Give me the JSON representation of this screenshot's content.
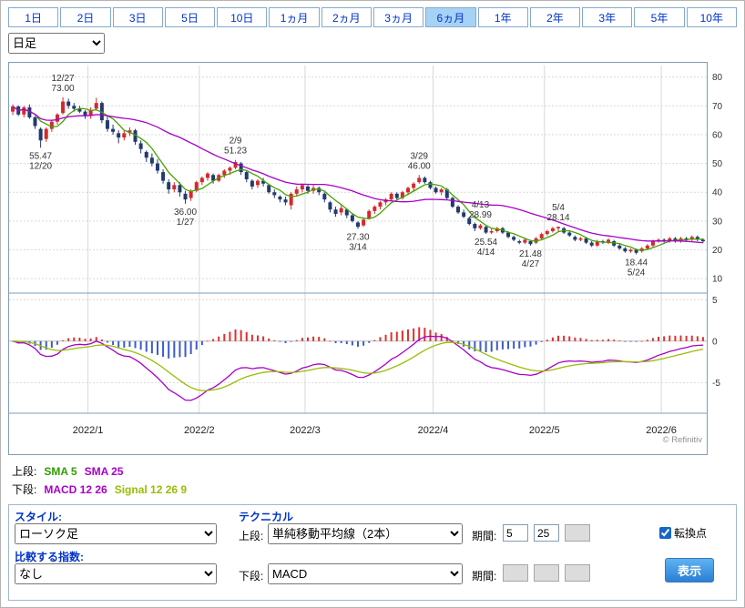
{
  "tabs": {
    "items": [
      {
        "label": "1日",
        "selected": false
      },
      {
        "label": "2日",
        "selected": false
      },
      {
        "label": "3日",
        "selected": false
      },
      {
        "label": "5日",
        "selected": false
      },
      {
        "label": "10日",
        "selected": false
      },
      {
        "label": "1ヵ月",
        "selected": false
      },
      {
        "label": "2ヵ月",
        "selected": false
      },
      {
        "label": "3ヵ月",
        "selected": false
      },
      {
        "label": "6ヵ月",
        "selected": true
      },
      {
        "label": "1年",
        "selected": false
      },
      {
        "label": "2年",
        "selected": false
      },
      {
        "label": "3年",
        "selected": false
      },
      {
        "label": "5年",
        "selected": false
      },
      {
        "label": "10年",
        "selected": false
      }
    ]
  },
  "timeframe_select": {
    "value": "日足"
  },
  "chart_data": {
    "type": "candlestick",
    "copyright": "© Refinitiv",
    "y_axis_main": {
      "ticks": [
        80,
        70,
        60,
        50,
        40,
        30,
        20,
        10
      ]
    },
    "y_axis_sub": {
      "ticks": [
        5,
        0,
        -5
      ]
    },
    "x_labels": [
      {
        "label": "2022/1",
        "index": 14
      },
      {
        "label": "2022/2",
        "index": 34
      },
      {
        "label": "2022/3",
        "index": 53
      },
      {
        "label": "2022/4",
        "index": 76
      },
      {
        "label": "2022/5",
        "index": 96
      },
      {
        "label": "2022/6",
        "index": 117
      }
    ],
    "colors": {
      "up": "#d42a2a",
      "down": "#223a70"
    },
    "overlays": [
      {
        "name": "SMA 5",
        "period": 5,
        "color": "#44a300"
      },
      {
        "name": "SMA 25",
        "period": 25,
        "color": "#a800c8"
      }
    ],
    "sub_indicator": {
      "name": "MACD",
      "fast": 12,
      "slow": 26,
      "signal": 9,
      "macd_color": "#a800c8",
      "signal_color": "#97be00",
      "hist_up_color": "#e03030",
      "hist_down_color": "#3c5cc8"
    },
    "annotations": [
      {
        "index": 5,
        "placement": "below",
        "lines": [
          "55.47",
          "12/20"
        ]
      },
      {
        "index": 9,
        "placement": "above",
        "lines": [
          "12/27",
          "73.00"
        ]
      },
      {
        "index": 31,
        "placement": "below",
        "lines": [
          "36.00",
          "1/27"
        ]
      },
      {
        "index": 40,
        "placement": "above",
        "lines": [
          "2/9",
          "51.23"
        ]
      },
      {
        "index": 62,
        "placement": "below",
        "lines": [
          "27.30",
          "3/14"
        ]
      },
      {
        "index": 73,
        "placement": "above",
        "lines": [
          "3/29",
          "46.00"
        ]
      },
      {
        "index": 84,
        "placement": "above",
        "lines": [
          "4/13",
          "28.99"
        ]
      },
      {
        "index": 85,
        "placement": "below",
        "lines": [
          "25.54",
          "4/14"
        ]
      },
      {
        "index": 93,
        "placement": "below",
        "lines": [
          "21.48",
          "4/27"
        ]
      },
      {
        "index": 98,
        "placement": "above",
        "lines": [
          "5/4",
          "28.14"
        ]
      },
      {
        "index": 112,
        "placement": "below",
        "lines": [
          "18.44",
          "5/24"
        ]
      }
    ],
    "dates": [
      "12/13",
      "12/14",
      "12/15",
      "12/16",
      "12/17",
      "12/20",
      "12/21",
      "12/22",
      "12/23",
      "12/27",
      "12/28",
      "12/29",
      "12/30",
      "12/31",
      "1/3",
      "1/4",
      "1/5",
      "1/6",
      "1/7",
      "1/10",
      "1/11",
      "1/12",
      "1/13",
      "1/14",
      "1/18",
      "1/19",
      "1/20",
      "1/21",
      "1/24",
      "1/25",
      "1/26",
      "1/27",
      "1/28",
      "1/31",
      "2/1",
      "2/2",
      "2/3",
      "2/4",
      "2/7",
      "2/8",
      "2/9",
      "2/10",
      "2/11",
      "2/14",
      "2/15",
      "2/16",
      "2/17",
      "2/18",
      "2/22",
      "2/23",
      "2/24",
      "2/25",
      "2/28",
      "3/1",
      "3/2",
      "3/3",
      "3/4",
      "3/7",
      "3/8",
      "3/9",
      "3/10",
      "3/11",
      "3/14",
      "3/15",
      "3/16",
      "3/17",
      "3/18",
      "3/21",
      "3/22",
      "3/23",
      "3/24",
      "3/25",
      "3/28",
      "3/29",
      "3/30",
      "3/31",
      "4/1",
      "4/4",
      "4/5",
      "4/6",
      "4/7",
      "4/8",
      "4/11",
      "4/12",
      "4/13",
      "4/14",
      "4/18",
      "4/19",
      "4/20",
      "4/21",
      "4/22",
      "4/25",
      "4/26",
      "4/27",
      "4/28",
      "4/29",
      "5/2",
      "5/3",
      "5/4",
      "5/5",
      "5/6",
      "5/9",
      "5/10",
      "5/11",
      "5/12",
      "5/13",
      "5/16",
      "5/17",
      "5/18",
      "5/19",
      "5/20",
      "5/23",
      "5/24",
      "5/25",
      "5/26",
      "5/27",
      "5/31",
      "6/1",
      "6/2",
      "6/3",
      "6/6",
      "6/7",
      "6/8",
      "6/9",
      "6/10"
    ],
    "ohlc": [
      [
        68.0,
        70.5,
        66.8,
        69.8
      ],
      [
        69.8,
        70.2,
        66.5,
        67.0
      ],
      [
        67.0,
        70.0,
        66.0,
        69.5
      ],
      [
        69.5,
        70.5,
        65.5,
        66.0
      ],
      [
        66.0,
        66.5,
        62.0,
        63.0
      ],
      [
        62.0,
        62.5,
        55.47,
        58.0
      ],
      [
        58.5,
        62.5,
        57.5,
        62.0
      ],
      [
        62.0,
        65.0,
        61.0,
        64.5
      ],
      [
        64.5,
        67.5,
        63.5,
        67.0
      ],
      [
        67.5,
        73.0,
        67.0,
        71.5
      ],
      [
        71.5,
        72.5,
        69.0,
        70.0
      ],
      [
        70.0,
        71.0,
        68.0,
        69.0
      ],
      [
        69.0,
        70.0,
        67.5,
        68.0
      ],
      [
        68.0,
        68.5,
        65.5,
        66.5
      ],
      [
        66.5,
        69.5,
        65.5,
        68.5
      ],
      [
        69.0,
        72.8,
        68.5,
        71.0
      ],
      [
        71.0,
        71.5,
        64.0,
        65.0
      ],
      [
        65.0,
        66.5,
        61.0,
        62.0
      ],
      [
        62.0,
        63.5,
        60.0,
        61.0
      ],
      [
        60.5,
        61.5,
        57.0,
        59.0
      ],
      [
        59.0,
        61.5,
        58.0,
        60.5
      ],
      [
        60.5,
        62.5,
        59.5,
        61.5
      ],
      [
        61.5,
        62.0,
        56.5,
        57.5
      ],
      [
        57.0,
        58.0,
        53.5,
        55.0
      ],
      [
        54.0,
        54.5,
        50.5,
        52.0
      ],
      [
        52.0,
        53.5,
        49.0,
        50.0
      ],
      [
        50.0,
        51.5,
        46.5,
        47.5
      ],
      [
        47.0,
        48.0,
        43.0,
        44.0
      ],
      [
        43.5,
        44.5,
        39.5,
        41.0
      ],
      [
        41.0,
        43.5,
        40.0,
        42.5
      ],
      [
        42.5,
        43.5,
        38.5,
        40.0
      ],
      [
        39.5,
        40.5,
        36.0,
        37.5
      ],
      [
        38.0,
        41.0,
        37.0,
        40.5
      ],
      [
        40.5,
        44.0,
        40.0,
        43.5
      ],
      [
        43.5,
        45.5,
        42.5,
        45.0
      ],
      [
        45.0,
        47.0,
        44.0,
        46.5
      ],
      [
        46.0,
        46.5,
        43.0,
        44.0
      ],
      [
        44.0,
        46.5,
        43.5,
        46.0
      ],
      [
        46.0,
        48.0,
        45.0,
        47.5
      ],
      [
        47.5,
        49.0,
        46.0,
        48.5
      ],
      [
        48.5,
        51.23,
        48.0,
        50.5
      ],
      [
        50.0,
        50.5,
        46.0,
        47.0
      ],
      [
        47.0,
        47.5,
        43.5,
        44.5
      ],
      [
        44.0,
        44.5,
        41.0,
        42.0
      ],
      [
        42.5,
        44.5,
        41.5,
        44.0
      ],
      [
        44.0,
        45.0,
        42.0,
        43.0
      ],
      [
        42.5,
        43.0,
        39.5,
        40.0
      ],
      [
        40.0,
        41.0,
        38.0,
        39.0
      ],
      [
        38.5,
        39.0,
        36.5,
        37.5
      ],
      [
        37.5,
        38.5,
        35.5,
        36.5
      ],
      [
        35.5,
        40.0,
        34.0,
        39.5
      ],
      [
        39.5,
        42.0,
        38.5,
        41.0
      ],
      [
        41.0,
        43.0,
        40.0,
        42.5
      ],
      [
        42.0,
        42.5,
        39.5,
        40.5
      ],
      [
        40.5,
        42.5,
        39.5,
        41.5
      ],
      [
        41.5,
        42.0,
        39.0,
        40.0
      ],
      [
        39.5,
        40.0,
        36.5,
        37.5
      ],
      [
        36.5,
        37.0,
        33.0,
        34.0
      ],
      [
        34.0,
        35.0,
        31.5,
        32.5
      ],
      [
        33.0,
        35.5,
        32.0,
        34.5
      ],
      [
        34.0,
        34.5,
        31.0,
        32.0
      ],
      [
        32.0,
        32.5,
        29.5,
        30.0
      ],
      [
        29.5,
        30.0,
        27.3,
        28.0
      ],
      [
        28.5,
        31.0,
        28.0,
        30.5
      ],
      [
        31.0,
        34.0,
        30.5,
        33.5
      ],
      [
        33.5,
        35.5,
        32.5,
        35.0
      ],
      [
        35.0,
        37.0,
        34.0,
        36.5
      ],
      [
        36.5,
        38.0,
        35.5,
        37.5
      ],
      [
        37.5,
        40.0,
        37.0,
        39.5
      ],
      [
        39.5,
        40.0,
        37.0,
        38.0
      ],
      [
        38.0,
        40.5,
        37.5,
        40.0
      ],
      [
        40.0,
        42.0,
        39.0,
        41.5
      ],
      [
        41.5,
        43.5,
        40.5,
        43.0
      ],
      [
        43.5,
        46.0,
        43.0,
        45.0
      ],
      [
        45.0,
        45.5,
        43.0,
        43.5
      ],
      [
        43.5,
        44.0,
        41.0,
        41.5
      ],
      [
        41.5,
        42.0,
        39.5,
        40.0
      ],
      [
        40.0,
        41.5,
        39.0,
        41.0
      ],
      [
        41.0,
        41.5,
        37.5,
        38.0
      ],
      [
        38.0,
        38.5,
        34.5,
        35.0
      ],
      [
        35.0,
        35.5,
        32.5,
        33.0
      ],
      [
        33.0,
        34.0,
        31.0,
        31.5
      ],
      [
        31.0,
        31.5,
        28.5,
        29.0
      ],
      [
        29.0,
        29.5,
        26.5,
        27.5
      ],
      [
        27.5,
        28.99,
        27.0,
        28.5
      ],
      [
        28.0,
        28.5,
        25.54,
        26.0
      ],
      [
        26.0,
        27.5,
        25.5,
        26.5
      ],
      [
        26.5,
        28.0,
        26.0,
        27.5
      ],
      [
        27.5,
        28.0,
        25.5,
        26.0
      ],
      [
        26.0,
        26.5,
        24.0,
        24.5
      ],
      [
        24.5,
        25.0,
        23.0,
        23.5
      ],
      [
        23.0,
        23.5,
        22.0,
        22.5
      ],
      [
        22.5,
        24.0,
        22.0,
        23.5
      ],
      [
        23.0,
        23.5,
        21.48,
        22.0
      ],
      [
        22.5,
        24.5,
        22.0,
        24.0
      ],
      [
        24.0,
        26.0,
        23.5,
        25.5
      ],
      [
        25.5,
        27.0,
        25.0,
        26.5
      ],
      [
        26.5,
        28.0,
        26.0,
        27.5
      ],
      [
        27.5,
        28.14,
        26.5,
        28.0
      ],
      [
        27.5,
        28.0,
        25.5,
        26.0
      ],
      [
        26.0,
        26.5,
        24.5,
        25.0
      ],
      [
        24.5,
        25.0,
        23.0,
        23.5
      ],
      [
        23.5,
        24.5,
        23.0,
        24.0
      ],
      [
        24.0,
        24.5,
        22.0,
        22.5
      ],
      [
        22.5,
        23.0,
        21.0,
        21.5
      ],
      [
        21.5,
        23.5,
        21.0,
        23.0
      ],
      [
        23.0,
        23.5,
        22.0,
        22.5
      ],
      [
        22.5,
        24.0,
        22.0,
        23.5
      ],
      [
        23.0,
        23.5,
        21.0,
        21.5
      ],
      [
        21.5,
        22.0,
        20.0,
        20.5
      ],
      [
        20.5,
        21.0,
        19.0,
        19.5
      ],
      [
        19.5,
        20.5,
        19.0,
        20.0
      ],
      [
        20.0,
        20.5,
        18.44,
        19.0
      ],
      [
        19.5,
        21.0,
        19.0,
        20.5
      ],
      [
        20.5,
        22.0,
        20.0,
        21.5
      ],
      [
        21.5,
        23.5,
        21.0,
        23.0
      ],
      [
        23.0,
        24.0,
        22.5,
        23.5
      ],
      [
        23.5,
        24.0,
        22.5,
        23.0
      ],
      [
        23.0,
        24.5,
        22.5,
        24.0
      ],
      [
        24.0,
        24.5,
        22.5,
        23.0
      ],
      [
        23.0,
        24.5,
        22.5,
        24.0
      ],
      [
        24.0,
        24.5,
        23.0,
        23.5
      ],
      [
        23.5,
        25.0,
        23.0,
        24.5
      ],
      [
        24.5,
        25.0,
        23.0,
        23.5
      ],
      [
        23.5,
        24.0,
        22.5,
        23.0
      ]
    ]
  },
  "legend": {
    "upper_label": "上段:",
    "upper_items": [
      {
        "text": "SMA 5",
        "color": "#2f9e00"
      },
      {
        "text": "SMA 25",
        "color": "#a800c8"
      }
    ],
    "lower_label": "下段:",
    "lower_items": [
      {
        "text": "MACD 12 26",
        "color": "#a800c8"
      },
      {
        "text": "Signal 12 26 9",
        "color": "#97be00"
      }
    ]
  },
  "controls": {
    "style_label": "スタイル:",
    "style_value": "ローソク足",
    "compare_label": "比較する指数:",
    "compare_value": "なし",
    "technical_label": "テクニカル",
    "upper_row_label": "上段:",
    "upper_select_value": "単純移動平均線（2本）",
    "period_label": "期間:",
    "upper_periods": [
      "5",
      "25",
      ""
    ],
    "lower_row_label": "下段:",
    "lower_select_value": "MACD",
    "lower_periods": [
      "",
      "",
      ""
    ],
    "checkbox_label": "転換点",
    "checkbox_checked": true,
    "submit_label": "表示"
  }
}
